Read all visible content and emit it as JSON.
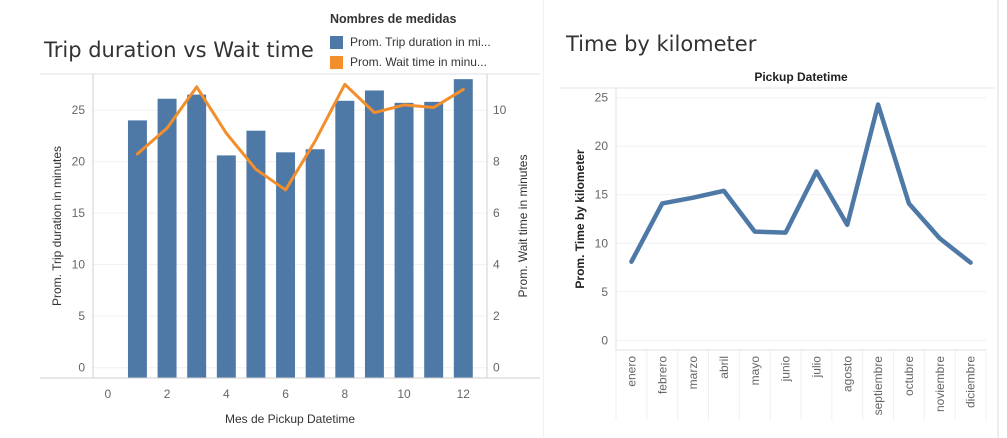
{
  "left_chart": {
    "title": "Trip duration vs Wait time",
    "legend": {
      "title": "Nombres de medidas",
      "items": [
        {
          "label": "Prom. Trip duration in mi...",
          "color": "#4e79a7"
        },
        {
          "label": "Prom. Wait time in minu...",
          "color": "#f28e2b"
        }
      ]
    }
  },
  "right_chart": {
    "title": "Time by kilometer"
  },
  "chart_data": [
    {
      "type": "bar",
      "title": "Trip duration vs Wait time",
      "xlabel": "Mes de Pickup Datetime",
      "ylabel": "Prom. Trip duration in minutes",
      "y2label": "Prom. Wait time in minutes",
      "xlim": [
        -0.5,
        12.8
      ],
      "ylim": [
        -1,
        28.5
      ],
      "y2lim": [
        -0.4,
        11.4
      ],
      "x_ticks": [
        0,
        2,
        4,
        6,
        8,
        10,
        12
      ],
      "y_ticks": [
        0,
        5,
        10,
        15,
        20,
        25
      ],
      "y2_ticks": [
        0,
        2,
        4,
        6,
        8,
        10
      ],
      "x": [
        1,
        2,
        3,
        4,
        5,
        6,
        7,
        8,
        9,
        10,
        11,
        12
      ],
      "series": [
        {
          "name": "Prom. Trip duration in mi...",
          "type": "bar",
          "axis": "left",
          "color": "#4e79a7",
          "values": [
            24.0,
            26.1,
            26.5,
            20.6,
            23.0,
            20.9,
            21.2,
            25.9,
            26.9,
            25.7,
            25.8,
            28.0
          ]
        },
        {
          "name": "Prom. Wait time in minu...",
          "type": "line",
          "axis": "right",
          "color": "#f28e2b",
          "values": [
            8.3,
            9.3,
            10.9,
            9.1,
            7.7,
            6.9,
            8.8,
            11.0,
            9.9,
            10.2,
            10.1,
            10.8
          ]
        }
      ],
      "grid": true
    },
    {
      "type": "line",
      "title": "Pickup Datetime",
      "xlabel": "",
      "ylabel": "Prom. Time by kilometer",
      "ylim": [
        -1,
        26
      ],
      "y_ticks": [
        0,
        5,
        10,
        15,
        20,
        25
      ],
      "categories": [
        "enero",
        "febrero",
        "marzo",
        "abril",
        "mayo",
        "junio",
        "julio",
        "agosto",
        "septiembre",
        "octubre",
        "noviembre",
        "diciembre"
      ],
      "series": [
        {
          "color": "#4e79a7",
          "values": [
            8.1,
            14.1,
            14.7,
            15.4,
            11.2,
            11.1,
            17.4,
            11.9,
            24.3,
            14.1,
            10.5,
            8.0
          ]
        }
      ],
      "grid": true
    }
  ]
}
